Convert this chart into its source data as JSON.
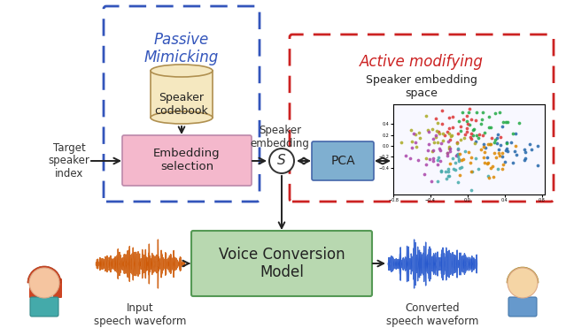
{
  "bg_color": "#ffffff",
  "fig_w": 6.39,
  "fig_h": 3.71,
  "passive_label": "Passive\nMimicking",
  "active_label": "Active modifying",
  "codebook_label": "Speaker\ncodebook",
  "embed_sel_label": "Embedding\nselection",
  "pca_label": "PCA",
  "vcm_label": "Voice Conversion\nModel",
  "sum_label": "S",
  "speaker_emb_label": "Speaker\nembedding",
  "speaker_emb_space_label": "Speaker embedding\nspace",
  "target_speaker_label": "Target\nspeaker\nindex",
  "input_label": "Input\nspeech waveform",
  "converted_label": "Converted\nspeech waveform",
  "passive_color": "#3355bb",
  "active_color": "#cc2222",
  "embed_sel_color": "#f4b8cc",
  "pca_color": "#7fafd0",
  "vcm_color": "#b8d8b0",
  "codebook_face": "#f5e8c0",
  "codebook_edge": "#b09050",
  "arrow_color": "#222222"
}
